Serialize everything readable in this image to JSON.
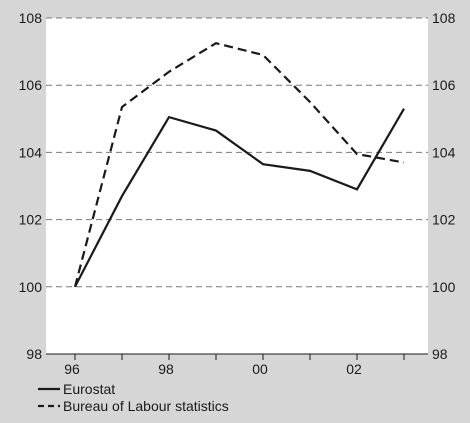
{
  "chart_data": {
    "type": "line",
    "x": [
      "1996",
      "1997",
      "1998",
      "1999",
      "2000",
      "2001",
      "2002",
      "2003"
    ],
    "x_tick_labels": [
      "96",
      "98",
      "00",
      "02"
    ],
    "ylim": [
      98,
      108
    ],
    "y_ticks": [
      98,
      100,
      102,
      104,
      106,
      108
    ],
    "grid": "horizontal dashed",
    "legend_position": "bottom-left",
    "series": [
      {
        "name": "Eurostat",
        "style": "solid",
        "color": "#1a1a1a",
        "values": [
          100.0,
          102.7,
          105.05,
          104.65,
          103.65,
          103.45,
          102.9,
          105.3
        ]
      },
      {
        "name": "Bureau of Labour statistics",
        "style": "dashed",
        "color": "#1a1a1a",
        "values": [
          100.0,
          105.35,
          106.4,
          107.25,
          106.9,
          105.5,
          103.95,
          103.7
        ]
      }
    ]
  }
}
